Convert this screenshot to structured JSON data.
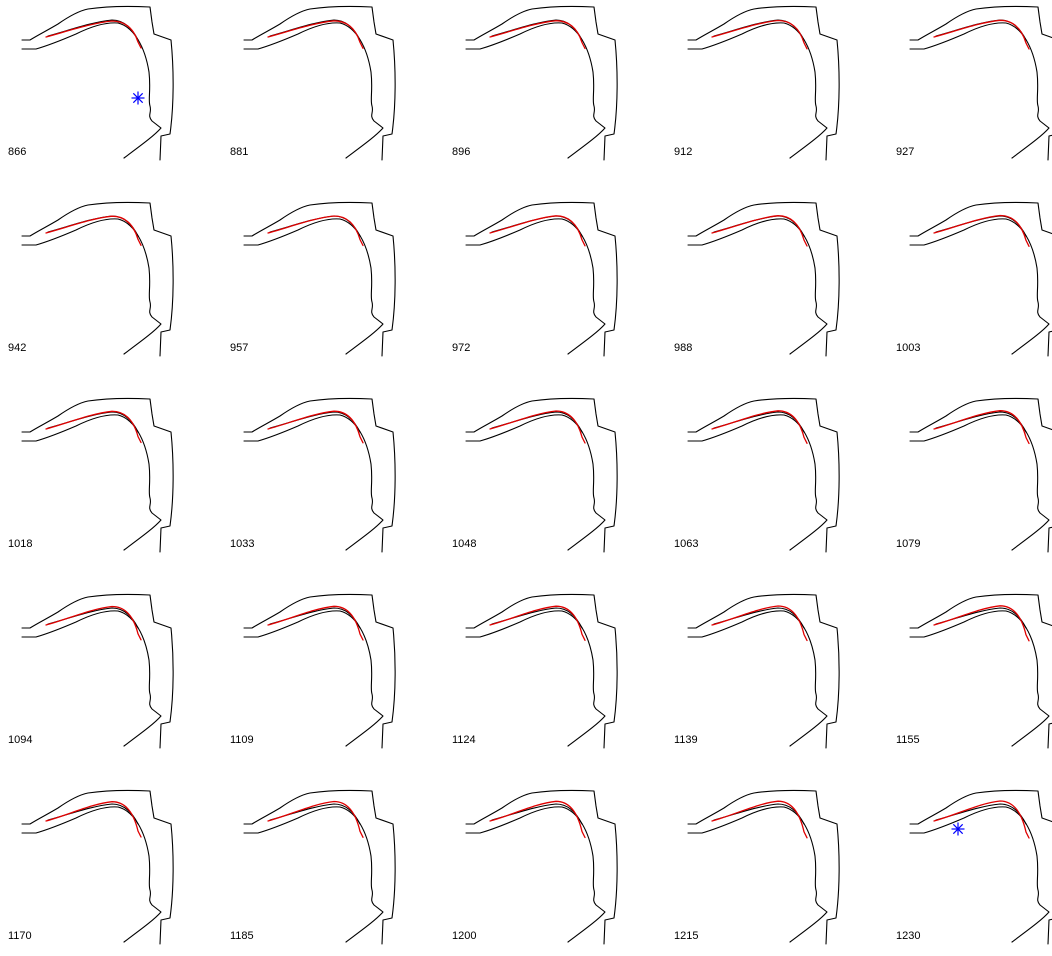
{
  "figure": {
    "frames": [
      {
        "label": "866",
        "marker": true
      },
      {
        "label": "881",
        "marker": false
      },
      {
        "label": "896",
        "marker": false
      },
      {
        "label": "912",
        "marker": false
      },
      {
        "label": "927",
        "marker": false
      },
      {
        "label": "942",
        "marker": false
      },
      {
        "label": "957",
        "marker": false
      },
      {
        "label": "972",
        "marker": false
      },
      {
        "label": "988",
        "marker": false
      },
      {
        "label": "1003",
        "marker": false
      },
      {
        "label": "1018",
        "marker": false
      },
      {
        "label": "1033",
        "marker": false
      },
      {
        "label": "1048",
        "marker": false
      },
      {
        "label": "1063",
        "marker": false
      },
      {
        "label": "1079",
        "marker": false
      },
      {
        "label": "1094",
        "marker": false
      },
      {
        "label": "1109",
        "marker": false
      },
      {
        "label": "1124",
        "marker": false
      },
      {
        "label": "1139",
        "marker": false
      },
      {
        "label": "1155",
        "marker": false
      },
      {
        "label": "1170",
        "marker": false
      },
      {
        "label": "1185",
        "marker": false
      },
      {
        "label": "1200",
        "marker": false
      },
      {
        "label": "1215",
        "marker": false
      },
      {
        "label": "1230",
        "marker": true
      }
    ],
    "colors": {
      "outline": "#000000",
      "tongue_trace": "#e00000",
      "marker": "#0000ff"
    },
    "marker_icon": "asterisk-icon"
  }
}
